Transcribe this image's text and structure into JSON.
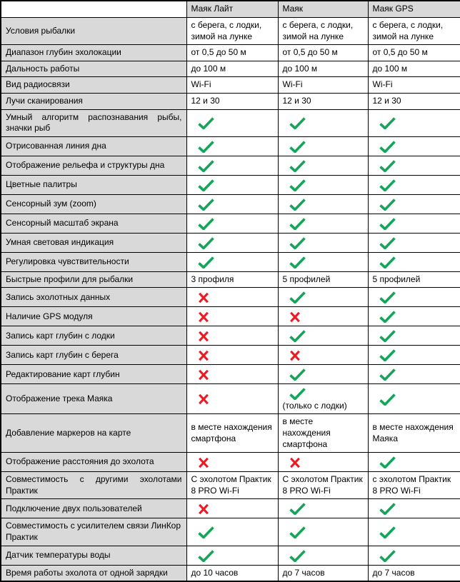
{
  "table": {
    "corner_label": "",
    "products": [
      "Маяк Лайт",
      "Маяк",
      "Маяк GPS"
    ],
    "colors": {
      "header_bg": "#d9d9d9",
      "label_bg": "#d9d9d9",
      "border": "#000000",
      "check_green": "#14a45a",
      "cross_red": "#ec1b23"
    },
    "icons": {
      "check": "check-icon",
      "cross": "cross-icon"
    },
    "rows": [
      {
        "label": "Условия рыбалки",
        "cells": [
          {
            "type": "text",
            "text": "с берега, с лодки, зимой на лунке"
          },
          {
            "type": "text",
            "text": "с берега, с лодки, зимой на лунке"
          },
          {
            "type": "text",
            "text": "с берега, с лодки, зимой на лунке"
          }
        ]
      },
      {
        "label": "Диапазон глубин эхолокации",
        "cells": [
          {
            "type": "text",
            "text": "от 0,5 до 50 м"
          },
          {
            "type": "text",
            "text": "от 0,5 до 50 м"
          },
          {
            "type": "text",
            "text": "от 0,5 до 50 м"
          }
        ]
      },
      {
        "label": "Дальность работы",
        "cells": [
          {
            "type": "text",
            "text": "до 100 м"
          },
          {
            "type": "text",
            "text": "до 100 м"
          },
          {
            "type": "text",
            "text": "до 100 м"
          }
        ]
      },
      {
        "label": "Вид радиосвязи",
        "cells": [
          {
            "type": "text",
            "text": "Wi-Fi"
          },
          {
            "type": "text",
            "text": "Wi-Fi"
          },
          {
            "type": "text",
            "text": "Wi-Fi"
          }
        ]
      },
      {
        "label": "Лучи сканирования",
        "cells": [
          {
            "type": "text",
            "text": "12 и 30"
          },
          {
            "type": "text",
            "text": "12 и 30"
          },
          {
            "type": "text",
            "text": "12 и 30"
          }
        ]
      },
      {
        "label": "Умный алгоритм распознавания рыбы, значки рыб",
        "justify": true,
        "cells": [
          {
            "type": "check"
          },
          {
            "type": "check"
          },
          {
            "type": "check"
          }
        ]
      },
      {
        "label": "Отрисованная линия дна",
        "cells": [
          {
            "type": "check"
          },
          {
            "type": "check"
          },
          {
            "type": "check"
          }
        ]
      },
      {
        "label": "Отображение рельефа и структуры дна",
        "cells": [
          {
            "type": "check"
          },
          {
            "type": "check"
          },
          {
            "type": "check"
          }
        ]
      },
      {
        "label": "Цветные палитры",
        "cells": [
          {
            "type": "check"
          },
          {
            "type": "check"
          },
          {
            "type": "check"
          }
        ]
      },
      {
        "label": "Сенсорный зум (zoom)",
        "cells": [
          {
            "type": "check"
          },
          {
            "type": "check"
          },
          {
            "type": "check"
          }
        ]
      },
      {
        "label": "Сенсорный масштаб экрана",
        "cells": [
          {
            "type": "check"
          },
          {
            "type": "check"
          },
          {
            "type": "check"
          }
        ]
      },
      {
        "label": "Умная световая индикация",
        "cells": [
          {
            "type": "check"
          },
          {
            "type": "check"
          },
          {
            "type": "check"
          }
        ]
      },
      {
        "label": "Регулировка чувствительности",
        "cells": [
          {
            "type": "check"
          },
          {
            "type": "check"
          },
          {
            "type": "check"
          }
        ]
      },
      {
        "label": "Быстрые профили для рыбалки",
        "cells": [
          {
            "type": "text",
            "text": "3 профиля"
          },
          {
            "type": "text",
            "text": "5 профилей"
          },
          {
            "type": "text",
            "text": "5 профилей"
          }
        ]
      },
      {
        "label": "Запись эхолотных данных",
        "cells": [
          {
            "type": "cross"
          },
          {
            "type": "check"
          },
          {
            "type": "check"
          }
        ]
      },
      {
        "label": "Наличие GPS модуля",
        "cells": [
          {
            "type": "cross"
          },
          {
            "type": "cross"
          },
          {
            "type": "check"
          }
        ]
      },
      {
        "label": "Запись карт глубин с лодки",
        "cells": [
          {
            "type": "cross"
          },
          {
            "type": "check"
          },
          {
            "type": "check"
          }
        ]
      },
      {
        "label": "Запись карт глубин с берега",
        "cells": [
          {
            "type": "cross"
          },
          {
            "type": "cross"
          },
          {
            "type": "check"
          }
        ]
      },
      {
        "label": "Редактирование карт глубин",
        "cells": [
          {
            "type": "cross"
          },
          {
            "type": "check"
          },
          {
            "type": "check"
          }
        ]
      },
      {
        "label": "Отображение трека Маяка",
        "cells": [
          {
            "type": "cross"
          },
          {
            "type": "check",
            "note": "(только с лодки)"
          },
          {
            "type": "check"
          }
        ]
      },
      {
        "label": "Добавление маркеров на карте",
        "cells": [
          {
            "type": "text",
            "text": "в месте нахождения смартфона"
          },
          {
            "type": "text",
            "text": "в месте нахождения смартфона"
          },
          {
            "type": "text",
            "text": "в месте нахождения Маяка"
          }
        ]
      },
      {
        "label": "Отображение расстояния до эхолота",
        "cells": [
          {
            "type": "cross"
          },
          {
            "type": "cross"
          },
          {
            "type": "check"
          }
        ]
      },
      {
        "label": "Совместимость с другими эхолотами Практик",
        "justify": true,
        "cells": [
          {
            "type": "text",
            "text": "С эхолотом Практик 8 PRO Wi-Fi"
          },
          {
            "type": "text",
            "text": "С эхолотом Практик 8 PRO Wi-Fi"
          },
          {
            "type": "text",
            "text": "с эхолотом Практик 8 PRO Wi-Fi"
          }
        ]
      },
      {
        "label": "Подключение двух пользователей",
        "cells": [
          {
            "type": "cross"
          },
          {
            "type": "check"
          },
          {
            "type": "check"
          }
        ]
      },
      {
        "label": "Совместимость с усилителем связи ЛинКор Практик",
        "cells": [
          {
            "type": "check"
          },
          {
            "type": "check"
          },
          {
            "type": "check"
          }
        ]
      },
      {
        "label": "Датчик температуры воды",
        "cells": [
          {
            "type": "check"
          },
          {
            "type": "check"
          },
          {
            "type": "check"
          }
        ]
      },
      {
        "label": "Время работы эхолота от одной зарядки",
        "cells": [
          {
            "type": "text",
            "text": "до 10 часов"
          },
          {
            "type": "text",
            "text": "до 7 часов"
          },
          {
            "type": "text",
            "text": "до 7 часов"
          }
        ]
      }
    ]
  }
}
